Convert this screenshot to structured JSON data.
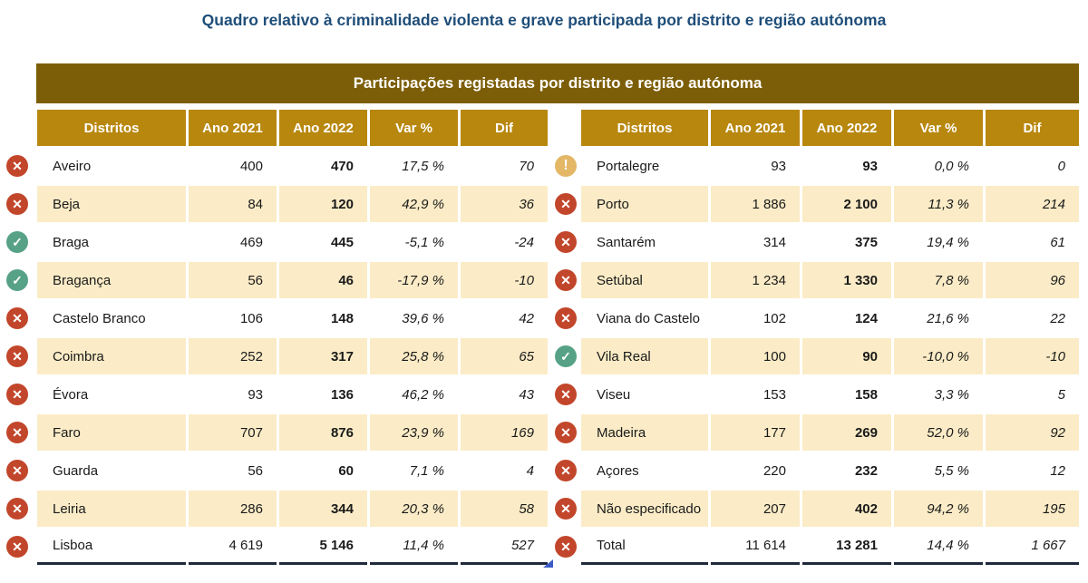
{
  "page": {
    "title": "Quadro relativo à criminalidade violenta e grave participada por distrito e região autónoma",
    "band_title": "Participações registadas por distrito e região autónoma"
  },
  "colors": {
    "title_text": "#1F4E79",
    "band_bg": "#7C5E08",
    "header_bg": "#B8870E",
    "stripe_bg": "#FBECC7",
    "icon_red": "#C2462B",
    "icon_green": "#57A287",
    "icon_yellow": "#E3B766",
    "total_border": "#202A3C",
    "corner_marker_blue": "#3A5BC7"
  },
  "columns": [
    "Distritos",
    "Ano 2021",
    "Ano 2022",
    "Var %",
    "Dif"
  ],
  "tables": [
    {
      "side": "left",
      "rows": [
        {
          "icon": "cross",
          "district": "Aveiro",
          "y2021": "400",
          "y2022": "470",
          "var": "17,5 %",
          "dif": "70"
        },
        {
          "icon": "cross",
          "district": "Beja",
          "y2021": "84",
          "y2022": "120",
          "var": "42,9 %",
          "dif": "36"
        },
        {
          "icon": "check",
          "district": "Braga",
          "y2021": "469",
          "y2022": "445",
          "var": "-5,1 %",
          "dif": "-24"
        },
        {
          "icon": "check",
          "district": "Bragança",
          "y2021": "56",
          "y2022": "46",
          "var": "-17,9 %",
          "dif": "-10"
        },
        {
          "icon": "cross",
          "district": "Castelo Branco",
          "y2021": "106",
          "y2022": "148",
          "var": "39,6 %",
          "dif": "42"
        },
        {
          "icon": "cross",
          "district": "Coimbra",
          "y2021": "252",
          "y2022": "317",
          "var": "25,8 %",
          "dif": "65"
        },
        {
          "icon": "cross",
          "district": "Évora",
          "y2021": "93",
          "y2022": "136",
          "var": "46,2 %",
          "dif": "43"
        },
        {
          "icon": "cross",
          "district": "Faro",
          "y2021": "707",
          "y2022": "876",
          "var": "23,9 %",
          "dif": "169"
        },
        {
          "icon": "cross",
          "district": "Guarda",
          "y2021": "56",
          "y2022": "60",
          "var": "7,1 %",
          "dif": "4"
        },
        {
          "icon": "cross",
          "district": "Leiria",
          "y2021": "286",
          "y2022": "344",
          "var": "20,3 %",
          "dif": "58"
        },
        {
          "icon": "cross",
          "district": "Lisboa",
          "y2021": "4 619",
          "y2022": "5 146",
          "var": "11,4 %",
          "dif": "527"
        }
      ]
    },
    {
      "side": "right",
      "rows": [
        {
          "icon": "exclaim",
          "district": "Portalegre",
          "y2021": "93",
          "y2022": "93",
          "var": "0,0 %",
          "dif": "0"
        },
        {
          "icon": "cross",
          "district": "Porto",
          "y2021": "1 886",
          "y2022": "2 100",
          "var": "11,3 %",
          "dif": "214"
        },
        {
          "icon": "cross",
          "district": "Santarém",
          "y2021": "314",
          "y2022": "375",
          "var": "19,4 %",
          "dif": "61"
        },
        {
          "icon": "cross",
          "district": "Setúbal",
          "y2021": "1 234",
          "y2022": "1 330",
          "var": "7,8 %",
          "dif": "96"
        },
        {
          "icon": "cross",
          "district": "Viana do Castelo",
          "y2021": "102",
          "y2022": "124",
          "var": "21,6 %",
          "dif": "22"
        },
        {
          "icon": "check",
          "district": "Vila Real",
          "y2021": "100",
          "y2022": "90",
          "var": "-10,0 %",
          "dif": "-10"
        },
        {
          "icon": "cross",
          "district": "Viseu",
          "y2021": "153",
          "y2022": "158",
          "var": "3,3 %",
          "dif": "5"
        },
        {
          "icon": "cross",
          "district": "Madeira",
          "y2021": "177",
          "y2022": "269",
          "var": "52,0 %",
          "dif": "92"
        },
        {
          "icon": "cross",
          "district": "Açores",
          "y2021": "220",
          "y2022": "232",
          "var": "5,5 %",
          "dif": "12"
        },
        {
          "icon": "cross",
          "district": "Não especificado",
          "y2021": "207",
          "y2022": "402",
          "var": "94,2 %",
          "dif": "195"
        },
        {
          "icon": "cross",
          "district": "Total",
          "y2021": "11 614",
          "y2022": "13 281",
          "var": "14,4 %",
          "dif": "1 667"
        }
      ]
    }
  ]
}
